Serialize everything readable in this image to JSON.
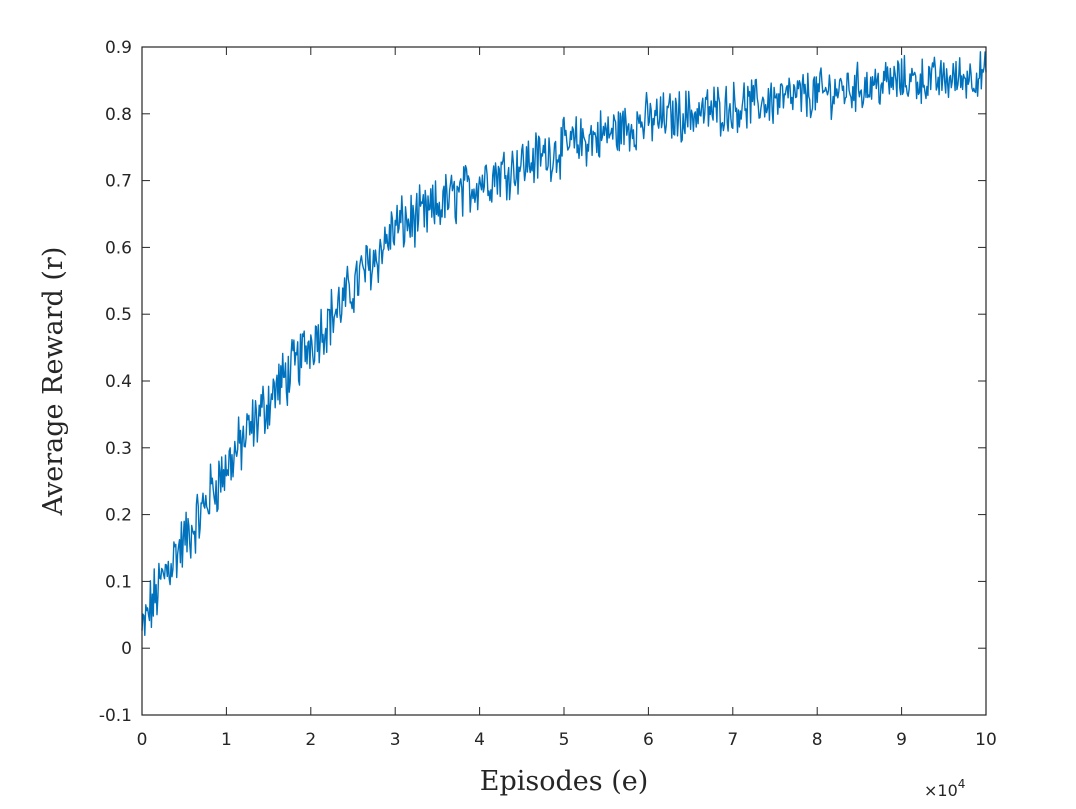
{
  "chart_data": {
    "type": "line",
    "title": "",
    "xlabel": "Episodes (e)",
    "ylabel": "Average Reward (r)",
    "x_multiplier": "×10",
    "x_multiplier_exp": "4",
    "xlim": [
      0,
      10
    ],
    "ylim": [
      -0.1,
      0.9
    ],
    "xticks": [
      "0",
      "1",
      "2",
      "3",
      "4",
      "5",
      "6",
      "7",
      "8",
      "9",
      "10"
    ],
    "yticks": [
      "-0.1",
      "0",
      "0.1",
      "0.2",
      "0.3",
      "0.4",
      "0.5",
      "0.6",
      "0.7",
      "0.8",
      "0.9"
    ],
    "grid": false,
    "series": [
      {
        "name": "",
        "color": "#0072BD",
        "x": [
          0,
          0.1,
          0.2,
          0.3,
          0.4,
          0.5,
          0.6,
          0.7,
          0.8,
          0.9,
          1.0,
          1.2,
          1.4,
          1.6,
          1.8,
          2.0,
          2.2,
          2.4,
          2.6,
          2.8,
          3.0,
          3.2,
          3.4,
          3.6,
          3.8,
          4.0,
          4.2,
          4.4,
          4.6,
          4.8,
          5.0,
          5.5,
          6.0,
          6.5,
          7.0,
          7.5,
          8.0,
          8.5,
          9.0,
          9.5,
          10.0
        ],
        "y": [
          0.02,
          0.06,
          0.09,
          0.12,
          0.14,
          0.16,
          0.18,
          0.2,
          0.23,
          0.25,
          0.27,
          0.31,
          0.35,
          0.39,
          0.42,
          0.46,
          0.49,
          0.52,
          0.56,
          0.59,
          0.63,
          0.64,
          0.65,
          0.67,
          0.68,
          0.7,
          0.71,
          0.72,
          0.73,
          0.74,
          0.75,
          0.77,
          0.79,
          0.8,
          0.81,
          0.82,
          0.83,
          0.84,
          0.85,
          0.85,
          0.86
        ],
        "noise_amplitude": 0.035
      }
    ]
  }
}
